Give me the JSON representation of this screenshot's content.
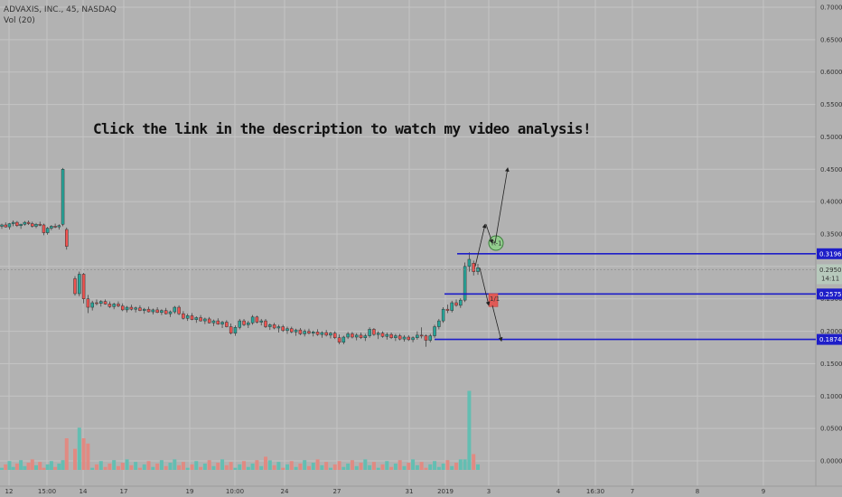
{
  "header": {
    "symbol_line": "ADVAXIS, INC., 45, NASDAQ",
    "indicator": "Vol (20)"
  },
  "annotation_text": "Click the link in the description to watch my video analysis!",
  "colors": {
    "background": "#b2b2b2",
    "grid": "#c4c4c4",
    "up": "#26a69a",
    "down": "#ef5350",
    "level_line": "#1e1ec8",
    "price_tag": "#1e1ec8"
  },
  "chart_data": {
    "type": "candlestick",
    "price_axis": {
      "ticks": [
        "0.7000",
        "0.6500",
        "0.6000",
        "0.5500",
        "0.5000",
        "0.4500",
        "0.4000",
        "0.3500",
        "0.3000",
        "0.2500",
        "0.2000",
        "0.1500",
        "0.1000",
        "0.0500",
        "0.0000"
      ],
      "ylim": [
        0.0,
        0.7
      ]
    },
    "time_axis": {
      "labels": [
        "12",
        "15:00",
        "14",
        "17",
        "19",
        "10:00",
        "24",
        "27",
        "31",
        "2019",
        "3",
        "4",
        "16:30",
        "7",
        "8",
        "9"
      ]
    },
    "levels": [
      {
        "price": 0.3196,
        "label": "0.3196"
      },
      {
        "price": 0.2575,
        "label": "0.2575"
      },
      {
        "price": 0.1874,
        "label": "0.1874"
      }
    ],
    "current_price": {
      "label": "0.2950",
      "countdown": "14:11"
    },
    "candles": [
      [
        0.362,
        0.366,
        0.358,
        0.364
      ],
      [
        0.364,
        0.368,
        0.36,
        0.361
      ],
      [
        0.361,
        0.367,
        0.357,
        0.366
      ],
      [
        0.366,
        0.371,
        0.362,
        0.368
      ],
      [
        0.368,
        0.37,
        0.361,
        0.363
      ],
      [
        0.363,
        0.366,
        0.358,
        0.365
      ],
      [
        0.365,
        0.37,
        0.363,
        0.368
      ],
      [
        0.368,
        0.371,
        0.364,
        0.366
      ],
      [
        0.366,
        0.369,
        0.36,
        0.362
      ],
      [
        0.362,
        0.367,
        0.359,
        0.365
      ],
      [
        0.365,
        0.369,
        0.362,
        0.364
      ],
      [
        0.364,
        0.366,
        0.348,
        0.352
      ],
      [
        0.352,
        0.361,
        0.349,
        0.359
      ],
      [
        0.359,
        0.364,
        0.356,
        0.362
      ],
      [
        0.362,
        0.366,
        0.359,
        0.361
      ],
      [
        0.361,
        0.365,
        0.357,
        0.363
      ],
      [
        0.365,
        0.452,
        0.362,
        0.45
      ],
      [
        0.357,
        0.36,
        0.326,
        0.331
      ],
      [
        0.281,
        0.285,
        0.255,
        0.258
      ],
      [
        0.258,
        0.292,
        0.254,
        0.288
      ],
      [
        0.288,
        0.29,
        0.243,
        0.25
      ],
      [
        0.25,
        0.256,
        0.228,
        0.237
      ],
      [
        0.237,
        0.247,
        0.232,
        0.244
      ],
      [
        0.244,
        0.249,
        0.24,
        0.243
      ],
      [
        0.243,
        0.248,
        0.238,
        0.246
      ],
      [
        0.246,
        0.249,
        0.241,
        0.242
      ],
      [
        0.242,
        0.246,
        0.236,
        0.238
      ],
      [
        0.238,
        0.244,
        0.234,
        0.242
      ],
      [
        0.242,
        0.246,
        0.237,
        0.239
      ],
      [
        0.239,
        0.243,
        0.231,
        0.233
      ],
      [
        0.233,
        0.239,
        0.229,
        0.237
      ],
      [
        0.237,
        0.241,
        0.232,
        0.234
      ],
      [
        0.234,
        0.238,
        0.229,
        0.236
      ],
      [
        0.236,
        0.24,
        0.231,
        0.232
      ],
      [
        0.232,
        0.236,
        0.227,
        0.234
      ],
      [
        0.234,
        0.238,
        0.229,
        0.23
      ],
      [
        0.23,
        0.235,
        0.226,
        0.233
      ],
      [
        0.233,
        0.237,
        0.228,
        0.229
      ],
      [
        0.229,
        0.234,
        0.225,
        0.232
      ],
      [
        0.232,
        0.236,
        0.226,
        0.227
      ],
      [
        0.227,
        0.232,
        0.222,
        0.23
      ],
      [
        0.23,
        0.239,
        0.227,
        0.237
      ],
      [
        0.237,
        0.24,
        0.225,
        0.227
      ],
      [
        0.227,
        0.231,
        0.218,
        0.22
      ],
      [
        0.22,
        0.227,
        0.216,
        0.224
      ],
      [
        0.224,
        0.228,
        0.217,
        0.218
      ],
      [
        0.218,
        0.223,
        0.213,
        0.221
      ],
      [
        0.221,
        0.225,
        0.215,
        0.216
      ],
      [
        0.216,
        0.221,
        0.211,
        0.219
      ],
      [
        0.219,
        0.222,
        0.212,
        0.213
      ],
      [
        0.213,
        0.218,
        0.208,
        0.216
      ],
      [
        0.216,
        0.22,
        0.21,
        0.211
      ],
      [
        0.211,
        0.216,
        0.205,
        0.214
      ],
      [
        0.214,
        0.217,
        0.206,
        0.207
      ],
      [
        0.207,
        0.212,
        0.195,
        0.197
      ],
      [
        0.197,
        0.209,
        0.193,
        0.206
      ],
      [
        0.206,
        0.219,
        0.203,
        0.216
      ],
      [
        0.216,
        0.219,
        0.208,
        0.21
      ],
      [
        0.21,
        0.216,
        0.205,
        0.213
      ],
      [
        0.213,
        0.225,
        0.21,
        0.222
      ],
      [
        0.222,
        0.224,
        0.212,
        0.214
      ],
      [
        0.214,
        0.219,
        0.209,
        0.216
      ],
      [
        0.216,
        0.219,
        0.205,
        0.207
      ],
      [
        0.207,
        0.212,
        0.202,
        0.21
      ],
      [
        0.21,
        0.213,
        0.203,
        0.205
      ],
      [
        0.205,
        0.21,
        0.198,
        0.207
      ],
      [
        0.207,
        0.21,
        0.199,
        0.201
      ],
      [
        0.201,
        0.207,
        0.196,
        0.204
      ],
      [
        0.204,
        0.207,
        0.197,
        0.199
      ],
      [
        0.199,
        0.204,
        0.193,
        0.202
      ],
      [
        0.202,
        0.205,
        0.194,
        0.196
      ],
      [
        0.196,
        0.203,
        0.192,
        0.2
      ],
      [
        0.2,
        0.204,
        0.195,
        0.197
      ],
      [
        0.197,
        0.201,
        0.192,
        0.199
      ],
      [
        0.199,
        0.203,
        0.193,
        0.195
      ],
      [
        0.195,
        0.2,
        0.19,
        0.198
      ],
      [
        0.198,
        0.202,
        0.192,
        0.194
      ],
      [
        0.194,
        0.199,
        0.189,
        0.197
      ],
      [
        0.197,
        0.2,
        0.188,
        0.19
      ],
      [
        0.19,
        0.195,
        0.18,
        0.183
      ],
      [
        0.183,
        0.193,
        0.18,
        0.191
      ],
      [
        0.191,
        0.199,
        0.188,
        0.196
      ],
      [
        0.196,
        0.199,
        0.189,
        0.191
      ],
      [
        0.191,
        0.197,
        0.186,
        0.194
      ],
      [
        0.194,
        0.198,
        0.188,
        0.19
      ],
      [
        0.19,
        0.196,
        0.185,
        0.193
      ],
      [
        0.193,
        0.206,
        0.19,
        0.203
      ],
      [
        0.203,
        0.205,
        0.193,
        0.195
      ],
      [
        0.195,
        0.2,
        0.188,
        0.197
      ],
      [
        0.197,
        0.2,
        0.19,
        0.192
      ],
      [
        0.192,
        0.198,
        0.187,
        0.195
      ],
      [
        0.195,
        0.198,
        0.188,
        0.19
      ],
      [
        0.19,
        0.196,
        0.185,
        0.193
      ],
      [
        0.193,
        0.196,
        0.186,
        0.188
      ],
      [
        0.188,
        0.194,
        0.184,
        0.191
      ],
      [
        0.191,
        0.194,
        0.185,
        0.187
      ],
      [
        0.187,
        0.192,
        0.183,
        0.19
      ],
      [
        0.19,
        0.2,
        0.187,
        0.194
      ],
      [
        0.194,
        0.206,
        0.189,
        0.193
      ],
      [
        0.193,
        0.195,
        0.176,
        0.186
      ],
      [
        0.186,
        0.196,
        0.183,
        0.193
      ],
      [
        0.193,
        0.21,
        0.19,
        0.207
      ],
      [
        0.207,
        0.219,
        0.203,
        0.216
      ],
      [
        0.216,
        0.237,
        0.213,
        0.234
      ],
      [
        0.234,
        0.241,
        0.228,
        0.232
      ],
      [
        0.232,
        0.247,
        0.229,
        0.244
      ],
      [
        0.244,
        0.249,
        0.238,
        0.24
      ],
      [
        0.24,
        0.251,
        0.236,
        0.248
      ],
      [
        0.248,
        0.306,
        0.245,
        0.3
      ],
      [
        0.3,
        0.322,
        0.292,
        0.311
      ],
      [
        0.305,
        0.309,
        0.286,
        0.292
      ],
      [
        0.292,
        0.304,
        0.287,
        0.298
      ]
    ],
    "projection_box": {
      "open": 0.258,
      "close": 0.238,
      "label": "1/1"
    },
    "target_circle": {
      "price": 0.336,
      "label": "R-1"
    },
    "volume_ticks": [
      "0.0000",
      "0.0500",
      "0.1000",
      "0.1500"
    ]
  }
}
